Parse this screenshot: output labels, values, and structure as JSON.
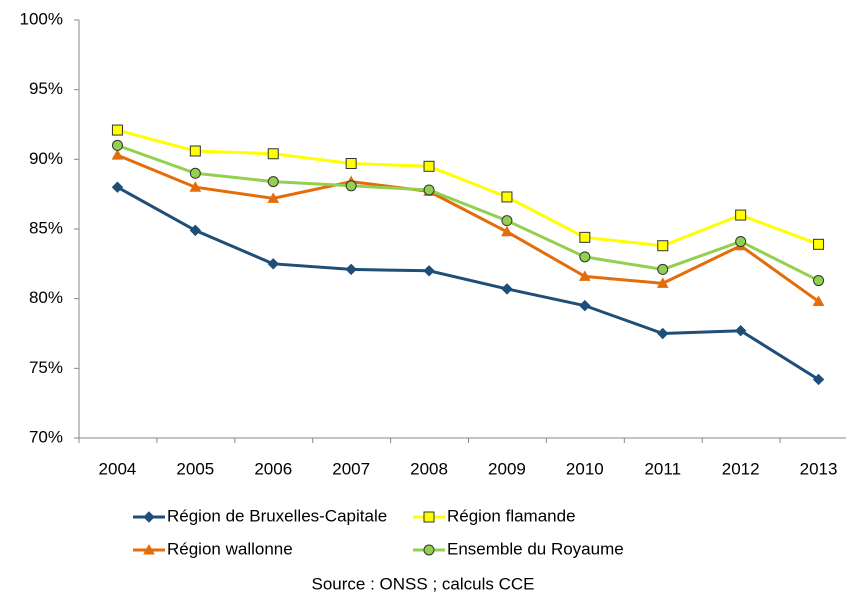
{
  "chart_data": {
    "type": "line",
    "categories": [
      "2004",
      "2005",
      "2006",
      "2007",
      "2008",
      "2009",
      "2010",
      "2011",
      "2012",
      "2013"
    ],
    "series": [
      {
        "name": "Région de Bruxelles-Capitale",
        "color": "#1f4e79",
        "marker": "diamond",
        "marker_fill": "#1f4e79",
        "values": [
          88.0,
          84.9,
          82.5,
          82.1,
          82.0,
          80.7,
          79.5,
          77.5,
          77.7,
          74.2
        ]
      },
      {
        "name": "Région flamande",
        "color": "#ffff00",
        "marker": "square",
        "marker_fill": "#ffff00",
        "values": [
          92.1,
          90.6,
          90.4,
          89.7,
          89.5,
          87.3,
          84.4,
          83.8,
          86.0,
          83.9
        ]
      },
      {
        "name": "Région wallonne",
        "color": "#e46c0a",
        "marker": "triangle",
        "marker_fill": "#e46c0a",
        "values": [
          90.3,
          88.0,
          87.2,
          88.4,
          87.7,
          84.8,
          81.6,
          81.1,
          83.8,
          79.8
        ]
      },
      {
        "name": "Ensemble du Royaume",
        "color": "#92d050",
        "marker": "circle",
        "marker_fill": "#92d050",
        "values": [
          91.0,
          89.0,
          88.4,
          88.1,
          87.8,
          85.6,
          83.0,
          82.1,
          84.1,
          81.3
        ]
      }
    ],
    "ylim": [
      70,
      100
    ],
    "yticks": [
      {
        "value": 70,
        "label": "70%"
      },
      {
        "value": 75,
        "label": "75%"
      },
      {
        "value": 80,
        "label": "80%"
      },
      {
        "value": 85,
        "label": "85%"
      },
      {
        "value": 90,
        "label": "90%"
      },
      {
        "value": 95,
        "label": "95%"
      },
      {
        "value": 100,
        "label": "100%"
      }
    ],
    "grid": false,
    "source": "Source : ONSS ; calculs CCE"
  }
}
